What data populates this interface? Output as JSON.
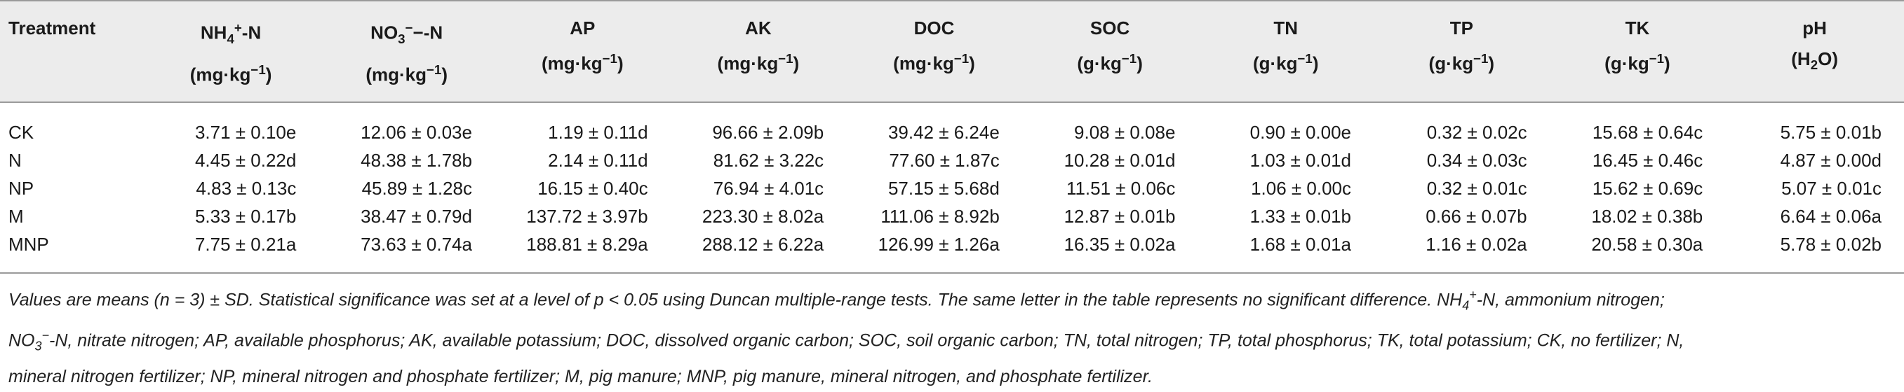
{
  "table": {
    "columns": [
      {
        "key": "treatment",
        "label_line1": "Treatment",
        "label_line2": ""
      },
      {
        "key": "nh4",
        "label_line1": "NH4+-N",
        "label_line2": "(mg·kg−1)"
      },
      {
        "key": "no3",
        "label_line1": "NO3−−-N",
        "label_line2": "(mg·kg−1)"
      },
      {
        "key": "ap",
        "label_line1": "AP",
        "label_line2": "(mg·kg−1)"
      },
      {
        "key": "ak",
        "label_line1": "AK",
        "label_line2": "(mg·kg−1)"
      },
      {
        "key": "doc",
        "label_line1": "DOC",
        "label_line2": "(mg·kg−1)"
      },
      {
        "key": "soc",
        "label_line1": "SOC",
        "label_line2": "(g·kg−1)"
      },
      {
        "key": "tn",
        "label_line1": "TN",
        "label_line2": "(g·kg−1)"
      },
      {
        "key": "tp",
        "label_line1": "TP",
        "label_line2": "(g·kg−1)"
      },
      {
        "key": "tk",
        "label_line1": "TK",
        "label_line2": "(g·kg−1)"
      },
      {
        "key": "ph",
        "label_line1": "pH",
        "label_line2": "(H2O)"
      }
    ],
    "rows": [
      {
        "treatment": "CK",
        "values": [
          "3.71 ± 0.10e",
          "12.06 ± 0.03e",
          "1.19 ± 0.11d",
          "96.66 ± 2.09b",
          "39.42 ± 6.24e",
          "9.08 ± 0.08e",
          "0.90 ± 0.00e",
          "0.32 ± 0.02c",
          "15.68 ± 0.64c",
          "5.75 ± 0.01b"
        ]
      },
      {
        "treatment": "N",
        "values": [
          "4.45 ± 0.22d",
          "48.38 ± 1.78b",
          "2.14 ± 0.11d",
          "81.62 ± 3.22c",
          "77.60 ± 1.87c",
          "10.28 ± 0.01d",
          "1.03 ± 0.01d",
          "0.34 ± 0.03c",
          "16.45 ± 0.46c",
          "4.87 ± 0.00d"
        ]
      },
      {
        "treatment": "NP",
        "values": [
          "4.83 ± 0.13c",
          "45.89 ± 1.28c",
          "16.15 ± 0.40c",
          "76.94 ± 4.01c",
          "57.15 ± 5.68d",
          "11.51 ± 0.06c",
          "1.06 ± 0.00c",
          "0.32 ± 0.01c",
          "15.62 ± 0.69c",
          "5.07 ± 0.01c"
        ]
      },
      {
        "treatment": "M",
        "values": [
          "5.33 ± 0.17b",
          "38.47 ± 0.79d",
          "137.72 ± 3.97b",
          "223.30 ± 8.02a",
          "111.06 ± 8.92b",
          "12.87 ± 0.01b",
          "1.33 ± 0.01b",
          "0.66 ± 0.07b",
          "18.02 ± 0.38b",
          "6.64 ± 0.06a"
        ]
      },
      {
        "treatment": "MNP",
        "values": [
          "7.75 ± 0.21a",
          "73.63 ± 0.74a",
          "188.81 ± 8.29a",
          "288.12 ± 6.22a",
          "126.99 ± 1.26a",
          "16.35 ± 0.02a",
          "1.68 ± 0.01a",
          "1.16 ± 0.02a",
          "20.58 ± 0.30a",
          "5.78 ± 0.02b"
        ]
      }
    ]
  },
  "footnote": {
    "line1": "Values are means (n = 3) ± SD. Statistical significance was set at a level of p < 0.05 using Duncan multiple-range tests. The same letter in the table represents no significant difference. NH4+-N, ammonium nitrogen;",
    "line2": "NO3−-N, nitrate nitrogen; AP, available phosphorus; AK, available potassium; DOC, dissolved organic carbon; SOC, soil organic carbon; TN, total nitrogen; TP, total phosphorus; TK, total potassium; CK, no fertilizer; N,",
    "line3": "mineral nitrogen fertilizer; NP, mineral nitrogen and phosphate fertilizer; M, pig manure; MNP, pig manure, mineral nitrogen, and phosphate fertilizer."
  }
}
